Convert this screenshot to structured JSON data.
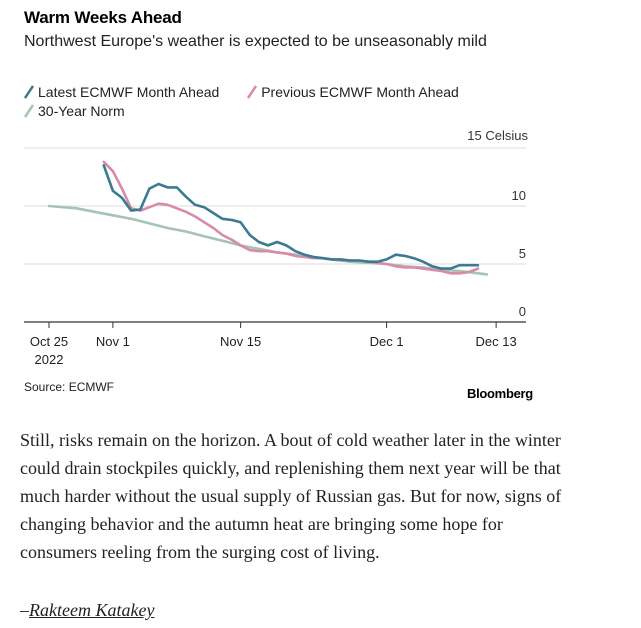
{
  "chart_data": {
    "type": "line",
    "title": "Warm Weeks Ahead",
    "subtitle": "Northwest Europe's weather is expected to be unseasonably mild",
    "y_unit_label": "15 Celsius",
    "ylim": [
      0,
      15
    ],
    "y_ticks": [
      0,
      5,
      10
    ],
    "x_ticks": [
      {
        "x": 0,
        "label": "Oct 25",
        "sublabel": "2022"
      },
      {
        "x": 7,
        "label": "Nov 1",
        "sublabel": ""
      },
      {
        "x": 21,
        "label": "Nov 15",
        "sublabel": ""
      },
      {
        "x": 37,
        "label": "Dec 1",
        "sublabel": ""
      },
      {
        "x": 49,
        "label": "Dec 13",
        "sublabel": ""
      }
    ],
    "grid": true,
    "legend_position": "top-left",
    "series": [
      {
        "name": "Latest ECMWF Month Ahead",
        "color": "#3b7a93",
        "x": [
          6,
          7,
          8,
          9,
          10,
          11,
          12,
          13,
          14,
          15,
          16,
          17,
          18,
          19,
          20,
          21,
          22,
          23,
          24,
          25,
          26,
          27,
          28,
          29,
          30,
          31,
          32,
          33,
          34,
          35,
          36,
          37,
          38,
          39,
          40,
          41,
          42,
          43,
          44,
          45,
          46,
          47
        ],
        "values": [
          13.5,
          11.3,
          10.7,
          9.6,
          9.7,
          11.5,
          11.9,
          11.6,
          11.6,
          10.8,
          10.1,
          9.9,
          9.4,
          8.9,
          8.8,
          8.6,
          7.5,
          6.9,
          6.6,
          6.9,
          6.6,
          6.1,
          5.8,
          5.6,
          5.5,
          5.4,
          5.4,
          5.3,
          5.3,
          5.2,
          5.2,
          5.4,
          5.8,
          5.7,
          5.5,
          5.2,
          4.8,
          4.6,
          4.6,
          4.9,
          4.9,
          4.9
        ]
      },
      {
        "name": "Previous ECMWF Month Ahead",
        "color": "#d88aa8",
        "x": [
          6,
          7,
          8,
          9,
          10,
          11,
          12,
          13,
          14,
          15,
          16,
          17,
          18,
          19,
          20,
          21,
          22,
          23,
          24,
          25,
          26,
          27,
          28,
          29,
          30,
          31,
          32,
          33,
          34,
          35,
          36,
          37,
          38,
          39,
          40,
          41,
          42,
          43,
          44,
          45,
          46,
          47
        ],
        "values": [
          13.8,
          13.0,
          11.5,
          9.8,
          9.6,
          9.9,
          10.2,
          10.1,
          9.8,
          9.5,
          9.1,
          8.6,
          8.1,
          7.5,
          7.1,
          6.6,
          6.2,
          6.1,
          6.1,
          6.0,
          5.9,
          5.7,
          5.6,
          5.5,
          5.5,
          5.4,
          5.3,
          5.3,
          5.3,
          5.2,
          5.1,
          5.0,
          4.8,
          4.7,
          4.7,
          4.6,
          4.5,
          4.4,
          4.2,
          4.2,
          4.3,
          4.6
        ]
      },
      {
        "name": "30-Year Norm",
        "color": "#a6c4b2",
        "x": [
          0,
          3,
          5,
          7,
          9,
          11,
          13,
          15,
          17,
          19,
          21,
          23,
          25,
          27,
          29,
          31,
          33,
          35,
          37,
          39,
          41,
          43,
          45,
          47,
          48
        ],
        "values": [
          10.0,
          9.8,
          9.5,
          9.2,
          8.9,
          8.5,
          8.1,
          7.8,
          7.4,
          7.0,
          6.6,
          6.3,
          6.0,
          5.8,
          5.6,
          5.4,
          5.2,
          5.1,
          5.0,
          4.8,
          4.7,
          4.5,
          4.4,
          4.2,
          4.1
        ]
      }
    ]
  },
  "source": "Source: ECMWF",
  "brand": "Bloomberg",
  "article": {
    "paragraph": "Still, risks remain on the horizon. A bout of cold weather later in the winter could drain stockpiles quickly, and replenishing them next year will be that much harder without the usual supply of Russian gas. But for now, signs of changing behavior and the autumn heat are bringing some hope for consumers reeling from the surging cost of living.",
    "byline_dash": "–",
    "byline_name": "Rakteem Katakey"
  }
}
